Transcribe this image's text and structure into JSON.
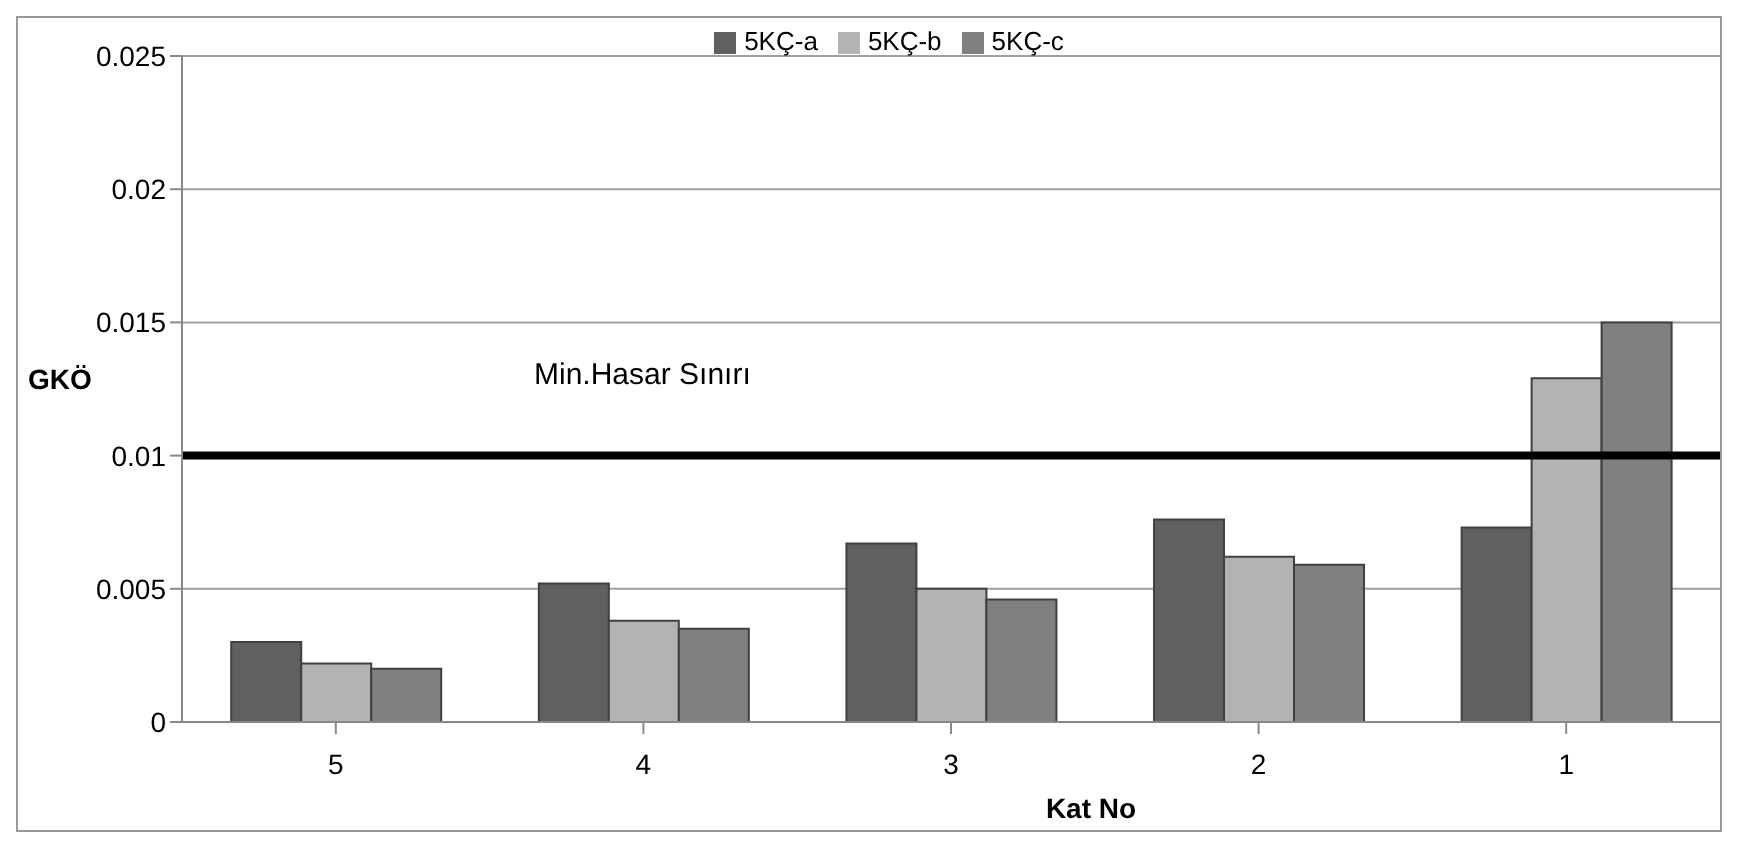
{
  "chart_data": {
    "type": "bar",
    "xlabel": "Kat No",
    "ylabel": "GKÖ",
    "categories": [
      "5",
      "4",
      "3",
      "2",
      "1"
    ],
    "series": [
      {
        "name": "5KÇ-a",
        "color": "#606060",
        "values": [
          0.003,
          0.0052,
          0.0067,
          0.0076,
          0.0073
        ]
      },
      {
        "name": "5KÇ-b",
        "color": "#b3b3b3",
        "values": [
          0.0022,
          0.0038,
          0.005,
          0.0062,
          0.0129
        ]
      },
      {
        "name": "5KÇ-c",
        "color": "#808080",
        "values": [
          0.002,
          0.0035,
          0.0046,
          0.0059,
          0.015
        ]
      }
    ],
    "ylim": [
      0,
      0.025
    ],
    "yticks": [
      0,
      0.005,
      0.01,
      0.015,
      0.02,
      0.025
    ],
    "grid": "y",
    "legend": "top",
    "ref_lines": [
      {
        "axis": "y",
        "value": 0.01,
        "label": "Min.Hasar Sınırı",
        "color": "#000000"
      }
    ]
  }
}
